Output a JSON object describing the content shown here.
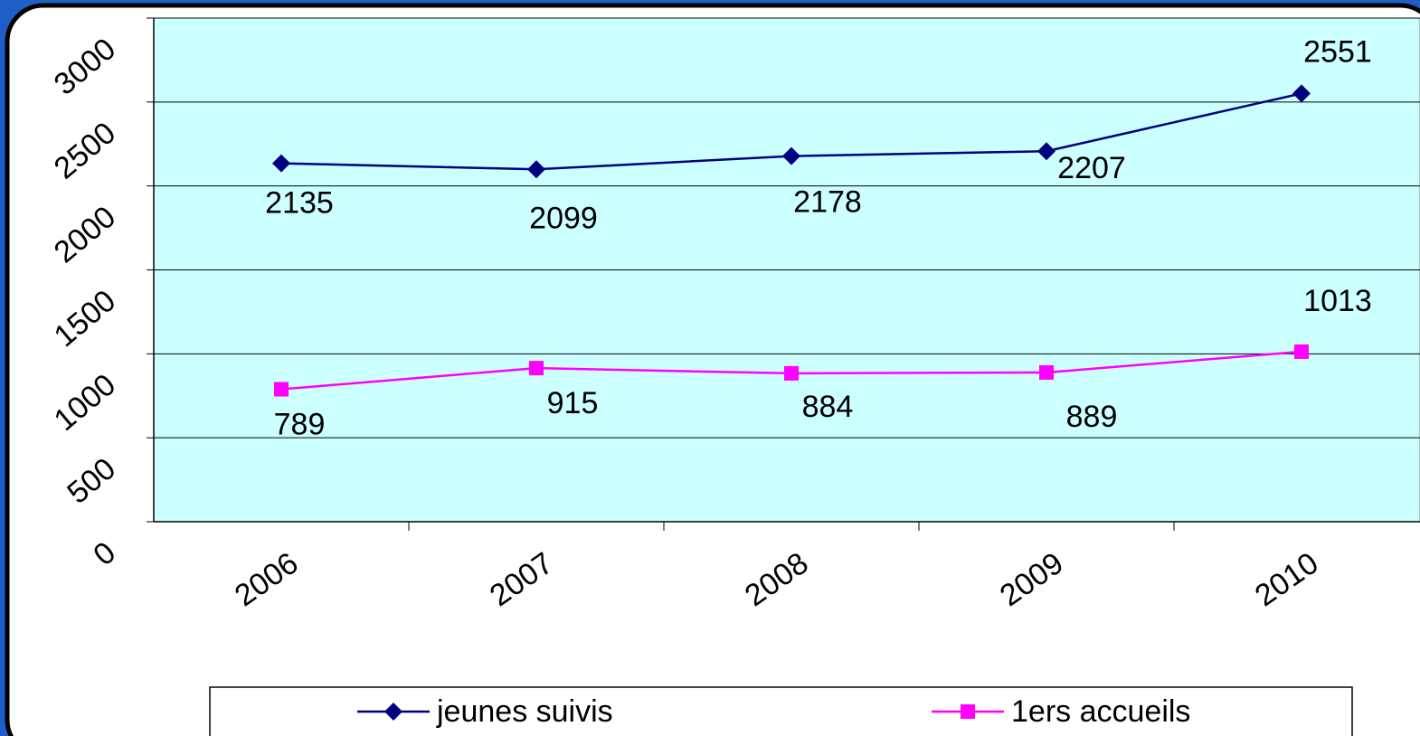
{
  "chart_data": {
    "type": "line",
    "categories": [
      "2006",
      "2007",
      "2008",
      "2009",
      "2010"
    ],
    "series": [
      {
        "name": "jeunes suivis",
        "color": "#000080",
        "marker": "diamond",
        "values": [
          2135,
          2099,
          2178,
          2207,
          2551
        ]
      },
      {
        "name": "1ers accueils",
        "color": "#ff00ff",
        "marker": "square",
        "values": [
          789,
          915,
          884,
          889,
          1013
        ]
      }
    ],
    "ylim": [
      0,
      3000
    ],
    "yticks": [
      0,
      500,
      1000,
      1500,
      2000,
      2500,
      3000
    ],
    "grid": true,
    "legend": "bottom"
  }
}
